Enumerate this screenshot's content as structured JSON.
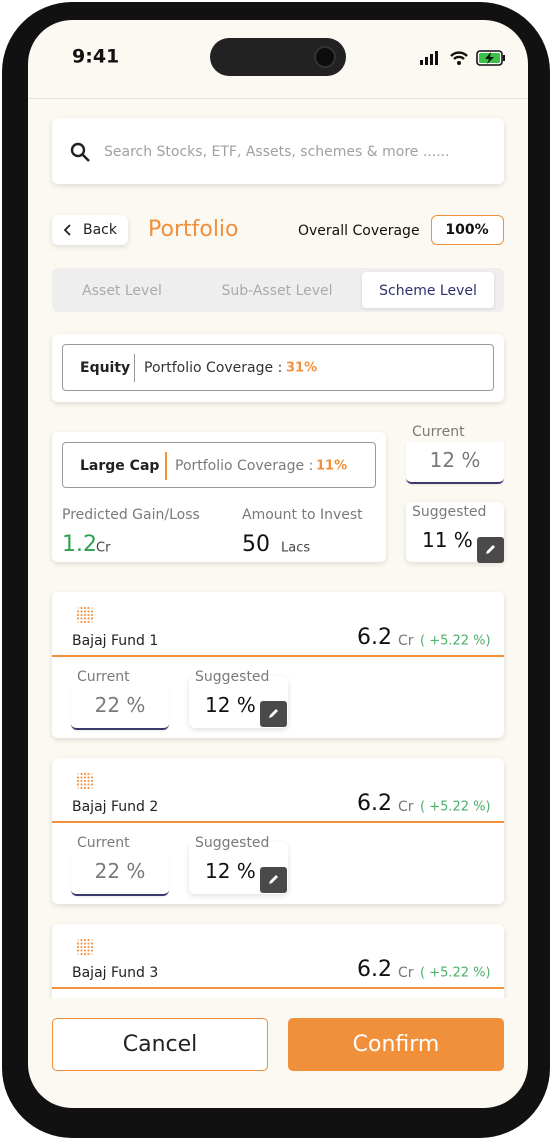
{
  "status_bar": {
    "time": "9:41"
  },
  "search": {
    "placeholder": "Search Stocks, ETF, Assets, schemes & more ......"
  },
  "header": {
    "back": "Back",
    "title": "Portfolio",
    "coverage_label": "Overall Coverage",
    "coverage_value": "100%"
  },
  "tabs": {
    "items": [
      "Asset Level",
      "Sub-Asset Level",
      "Scheme Level"
    ],
    "active": 2
  },
  "equity": {
    "name": "Equity",
    "coverage_label": "Portfolio Coverage :",
    "coverage_value": "31%"
  },
  "large_cap": {
    "name": "Large Cap",
    "coverage_label": "Portfolio Coverage :",
    "coverage_value": "11%",
    "gain_label": "Predicted Gain/Loss",
    "gain_value": "1.2",
    "gain_unit": "Cr",
    "invest_label": "Amount to Invest",
    "invest_value": "50",
    "invest_unit": "Lacs",
    "current_label": "Current",
    "current_value": "12 %",
    "suggested_label": "Suggested",
    "suggested_value": "11 %"
  },
  "funds": [
    {
      "name": "Bajaj Fund 1",
      "amount": "6.2",
      "unit": "Cr",
      "change": "( +5.22 %)",
      "current_label": "Current",
      "current_value": "22 %",
      "suggested_label": "Suggested",
      "suggested_value": "12 %"
    },
    {
      "name": "Bajaj Fund 2",
      "amount": "6.2",
      "unit": "Cr",
      "change": "( +5.22 %)",
      "current_label": "Current",
      "current_value": "22 %",
      "suggested_label": "Suggested",
      "suggested_value": "12 %"
    },
    {
      "name": "Bajaj Fund 3",
      "amount": "6.2",
      "unit": "Cr",
      "change": "( +5.22 %)"
    }
  ],
  "buttons": {
    "cancel": "Cancel",
    "confirm": "Confirm"
  }
}
